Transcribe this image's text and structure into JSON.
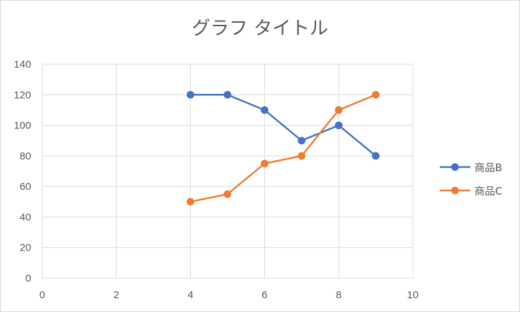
{
  "chart_data": {
    "type": "scatter",
    "title": "グラフ タイトル",
    "xlabel": "",
    "ylabel": "",
    "xlim": [
      0,
      10
    ],
    "ylim": [
      0,
      140
    ],
    "xticks": [
      0,
      2,
      4,
      6,
      8,
      10
    ],
    "yticks": [
      0,
      20,
      40,
      60,
      80,
      100,
      120,
      140
    ],
    "grid": true,
    "legend": "right",
    "series": [
      {
        "name": "商品B",
        "color": "#4472c4",
        "x": [
          4,
          5,
          6,
          7,
          8,
          9
        ],
        "y": [
          120,
          120,
          110,
          90,
          100,
          80
        ]
      },
      {
        "name": "商品C",
        "color": "#ed7d31",
        "x": [
          4,
          5,
          6,
          7,
          8,
          9
        ],
        "y": [
          50,
          55,
          75,
          80,
          110,
          120
        ]
      }
    ]
  }
}
